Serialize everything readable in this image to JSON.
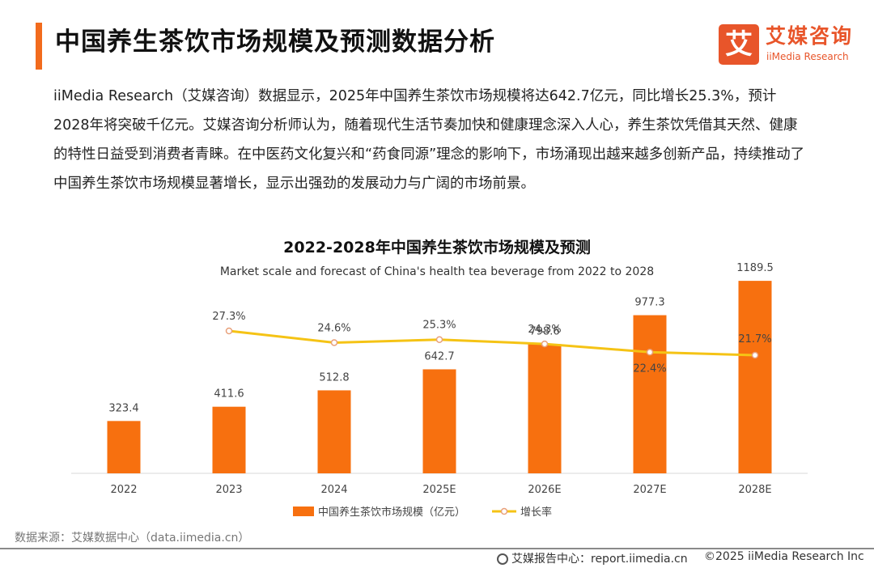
{
  "page": {
    "title": "中国养生茶饮市场规模及预测数据分析",
    "intro": "iiMedia Research（艾媒咨询）数据显示，2025年中国养生茶饮市场规模将达642.7亿元，同比增长25.3%，预计2028年将突破千亿元。艾媒咨询分析师认为，随着现代生活节奏加快和健康理念深入人心，养生茶饮凭借其天然、健康的特性日益受到消费者青睐。在中医药文化复兴和“药食同源”理念的影响下，市场涌现出越来越多创新产品，持续推动了中国养生茶饮市场规模显著增长，显示出强劲的发展动力与广阔的市场前景。"
  },
  "logo": {
    "mark": "艾",
    "cn": "艾媒咨询",
    "en": "iiMedia Research"
  },
  "chart_data": {
    "type": "bar",
    "title": "2022-2028年中国养生茶饮市场规模及预测",
    "subtitle": "Market scale and forecast of China's health tea beverage from 2022 to 2028",
    "categories": [
      "2022",
      "2023",
      "2024",
      "2025E",
      "2026E",
      "2027E",
      "2028E"
    ],
    "series": [
      {
        "name": "中国养生茶饮市场规模（亿元）",
        "type": "bar",
        "color": "#f7700f",
        "values": [
          323.4,
          411.6,
          512.8,
          642.7,
          798.6,
          977.3,
          1189.5
        ],
        "labels": [
          "323.4",
          "411.6",
          "512.8",
          "642.7",
          "798.6",
          "977.3",
          "1189.5"
        ]
      },
      {
        "name": "增长率",
        "type": "line",
        "color": "#f5c315",
        "values": [
          null,
          27.3,
          24.6,
          25.3,
          24.3,
          22.4,
          21.7
        ],
        "labels": [
          null,
          "27.3%",
          "24.6%",
          "25.3%",
          "24.3%",
          "22.4%",
          "21.7%"
        ]
      }
    ],
    "xlabel": "",
    "ylabel": "",
    "ylim": [
      0,
      1200
    ],
    "growth_range": [
      -2,
      36
    ],
    "legend": "bottom"
  },
  "source": "数据来源：艾媒数据中心（data.iimedia.cn）",
  "footer": {
    "report": "艾媒报告中心：report.iimedia.cn",
    "copyright": "©2025  iiMedia Research  Inc"
  }
}
